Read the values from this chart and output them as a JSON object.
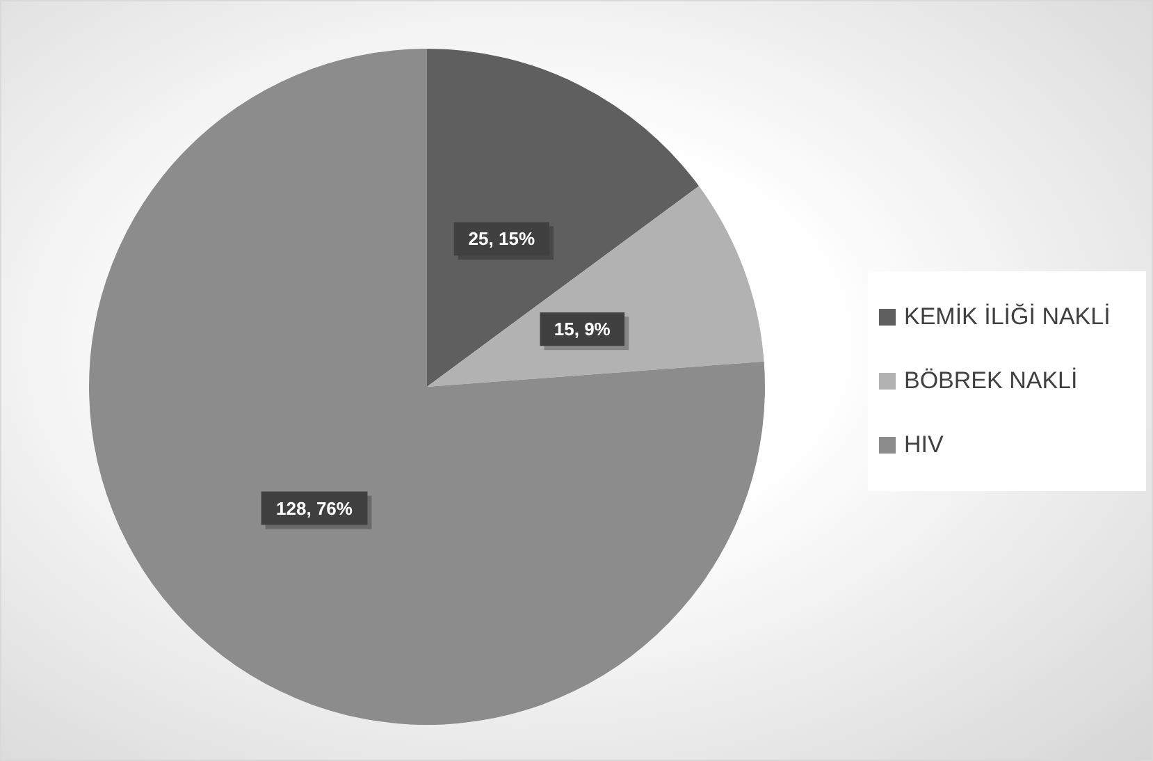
{
  "chart_data": {
    "type": "pie",
    "categories": [
      "KEMİK İLİĞİ NAKLİ",
      "BÖBREK NAKLİ",
      "HIV"
    ],
    "values": [
      25,
      15,
      128
    ],
    "colors": [
      "#5f5f5f",
      "#b2b2b2",
      "#8c8c8c"
    ],
    "value_labels": [
      "25, 15%",
      "15, 9%",
      "128, 76%"
    ],
    "legend": "right"
  }
}
